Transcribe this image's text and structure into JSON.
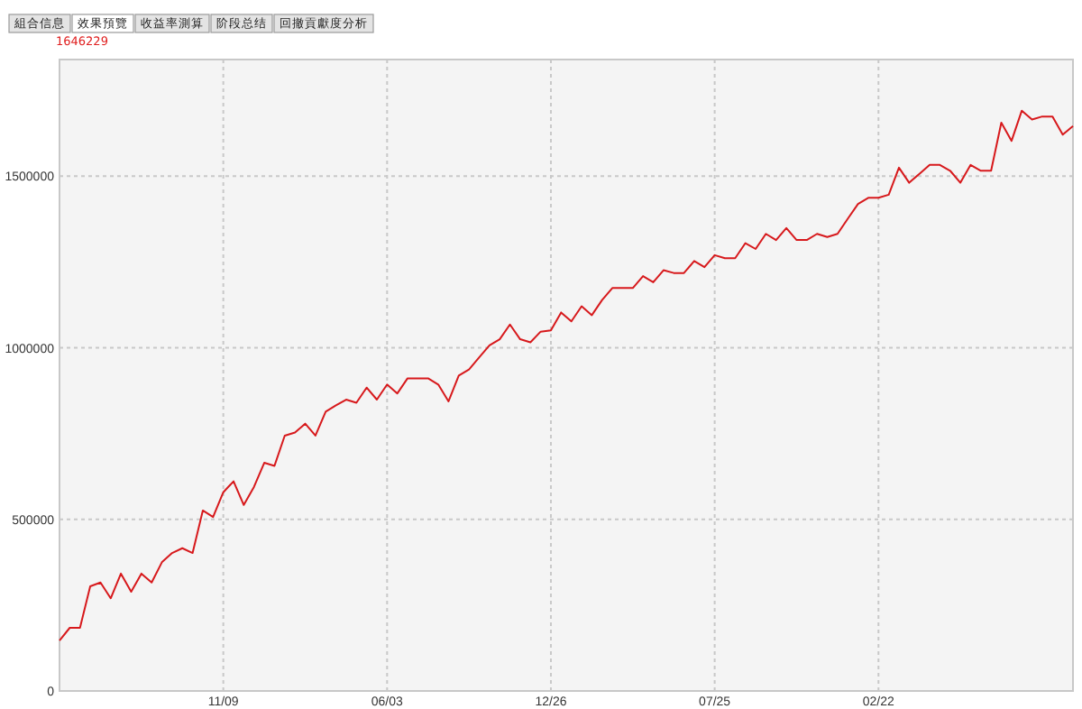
{
  "chart_data": {
    "type": "line",
    "annotations": [
      "組合信息",
      "效果預覽",
      "收益率測算",
      "阶段总结",
      "回撤貢獻度分析",
      "1646229"
    ],
    "categories": [
      null,
      null,
      null,
      null,
      null,
      null,
      null,
      null,
      null,
      null,
      null,
      null,
      null,
      null,
      null,
      null,
      "11/09",
      null,
      null,
      null,
      null,
      null,
      null,
      null,
      null,
      null,
      null,
      null,
      null,
      null,
      null,
      null,
      "06/03",
      null,
      null,
      null,
      null,
      null,
      null,
      null,
      null,
      null,
      null,
      null,
      null,
      null,
      null,
      null,
      "12/26",
      null,
      null,
      null,
      null,
      null,
      null,
      null,
      null,
      null,
      null,
      null,
      null,
      null,
      null,
      null,
      "07/25",
      null,
      null,
      null,
      null,
      null,
      null,
      null,
      null,
      null,
      null,
      null,
      null,
      null,
      null,
      null,
      "02/22",
      null,
      null,
      null,
      null,
      null,
      null,
      null,
      null,
      null,
      null,
      null,
      null,
      null,
      null,
      null,
      null,
      null,
      null,
      null
    ],
    "series": [
      {
        "color": "#d7191c",
        "values": [
          147000,
          184000,
          184000,
          305000,
          316000,
          270000,
          342000,
          289000,
          342000,
          316000,
          375000,
          402000,
          416000,
          402000,
          526000,
          507000,
          579000,
          611000,
          542000,
          595000,
          665000,
          656000,
          744000,
          753000,
          779000,
          744000,
          814000,
          832000,
          849000,
          840000,
          884000,
          849000,
          893000,
          867000,
          911000,
          911000,
          911000,
          893000,
          844000,
          919000,
          937000,
          972000,
          1007000,
          1025000,
          1068000,
          1025000,
          1016000,
          1047000,
          1051000,
          1103000,
          1077000,
          1121000,
          1095000,
          1139000,
          1174000,
          1174000,
          1174000,
          1209000,
          1191000,
          1226000,
          1218000,
          1218000,
          1253000,
          1235000,
          1270000,
          1261000,
          1261000,
          1305000,
          1288000,
          1332000,
          1314000,
          1349000,
          1314000,
          1314000,
          1332000,
          1323000,
          1332000,
          1376000,
          1419000,
          1437000,
          1437000,
          1446000,
          1525000,
          1481000,
          1507000,
          1533000,
          1533000,
          1516000,
          1481000,
          1533000,
          1516000,
          1516000,
          1656000,
          1603000,
          1691000,
          1665000,
          1674000,
          1674000,
          1621000,
          1646000
        ]
      }
    ],
    "ylim": [
      0,
      1840000
    ],
    "yticks": [
      0,
      500000,
      1000000,
      1500000
    ],
    "grid": true,
    "line_style": "solid"
  }
}
